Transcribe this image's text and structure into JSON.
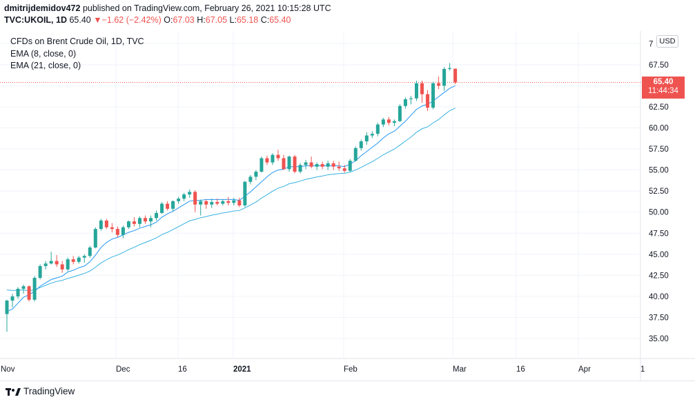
{
  "header": {
    "author": "dmitrijdemidov472",
    "published": "published on TradingView.com, February 26, 2021 10:15:28 UTC",
    "symbol": "TVC:UKOIL, 1D",
    "last": "65.40",
    "change_arrow": "▼",
    "change": "−1.62 (−2.42%)",
    "o_label": "O:",
    "o_value": "67.03",
    "h_label": "H:",
    "h_value": "67.05",
    "l_label": "L:",
    "l_value": "65.18",
    "c_label": "C:",
    "c_value": "65.40"
  },
  "legend": {
    "title": "CFDs on Brent Crude Oil, 1D, TVC",
    "ema8": "EMA (8, close, 0)",
    "ema21": "EMA (21, close, 0)"
  },
  "currency": "USD",
  "price_tag": {
    "price": "65.40",
    "countdown": "11:44:34"
  },
  "footer": {
    "brand": "TradingView"
  },
  "colors": {
    "up": "#26a69a",
    "down": "#ef5350",
    "ema8": "#2196f3",
    "ema21": "#33b1e0",
    "grid": "#f0f3fa",
    "axis_text": "#131722"
  },
  "chart_data": {
    "type": "candlestick",
    "symbol": "TVC:UKOIL",
    "interval": "1D",
    "ylim": [
      32.5,
      71.0
    ],
    "yticks": [
      "35.00",
      "37.50",
      "40.00",
      "42.50",
      "45.00",
      "47.50",
      "50.00",
      "52.50",
      "55.00",
      "57.50",
      "60.00",
      "62.50",
      "65.00",
      "67.50",
      "7"
    ],
    "xticks": [
      "Nov",
      "Dec",
      "16",
      "2021",
      "Feb",
      "Mar",
      "16",
      "Apr",
      "1"
    ],
    "last_price": 65.4,
    "candles": [
      {
        "o": 37.9,
        "h": 39.6,
        "l": 35.8,
        "c": 39.5
      },
      {
        "o": 39.5,
        "h": 40.3,
        "l": 38.7,
        "c": 40.0
      },
      {
        "o": 40.0,
        "h": 41.1,
        "l": 39.7,
        "c": 40.9
      },
      {
        "o": 40.9,
        "h": 41.4,
        "l": 40.3,
        "c": 41.2
      },
      {
        "o": 41.2,
        "h": 41.3,
        "l": 39.4,
        "c": 39.6
      },
      {
        "o": 39.6,
        "h": 42.4,
        "l": 39.4,
        "c": 42.2
      },
      {
        "o": 42.2,
        "h": 43.8,
        "l": 42.0,
        "c": 43.6
      },
      {
        "o": 43.6,
        "h": 44.2,
        "l": 43.2,
        "c": 43.9
      },
      {
        "o": 43.9,
        "h": 45.3,
        "l": 43.8,
        "c": 44.2
      },
      {
        "o": 44.2,
        "h": 44.9,
        "l": 43.5,
        "c": 43.8
      },
      {
        "o": 43.8,
        "h": 44.2,
        "l": 42.8,
        "c": 43.2
      },
      {
        "o": 43.2,
        "h": 44.6,
        "l": 43.0,
        "c": 44.4
      },
      {
        "o": 44.4,
        "h": 44.8,
        "l": 43.8,
        "c": 44.1
      },
      {
        "o": 44.1,
        "h": 44.8,
        "l": 43.9,
        "c": 44.6
      },
      {
        "o": 44.6,
        "h": 45.0,
        "l": 44.0,
        "c": 44.8
      },
      {
        "o": 44.8,
        "h": 46.0,
        "l": 44.6,
        "c": 45.8
      },
      {
        "o": 45.8,
        "h": 48.2,
        "l": 45.7,
        "c": 48.0
      },
      {
        "o": 48.0,
        "h": 49.2,
        "l": 47.8,
        "c": 49.0
      },
      {
        "o": 49.0,
        "h": 49.2,
        "l": 48.0,
        "c": 48.2
      },
      {
        "o": 48.2,
        "h": 48.7,
        "l": 47.6,
        "c": 48.0
      },
      {
        "o": 48.0,
        "h": 48.3,
        "l": 47.0,
        "c": 47.3
      },
      {
        "o": 47.3,
        "h": 48.4,
        "l": 46.9,
        "c": 48.2
      },
      {
        "o": 48.2,
        "h": 49.0,
        "l": 48.0,
        "c": 48.9
      },
      {
        "o": 48.9,
        "h": 49.4,
        "l": 48.3,
        "c": 48.6
      },
      {
        "o": 48.6,
        "h": 49.5,
        "l": 48.2,
        "c": 49.3
      },
      {
        "o": 49.3,
        "h": 49.6,
        "l": 48.6,
        "c": 48.9
      },
      {
        "o": 48.9,
        "h": 49.6,
        "l": 48.2,
        "c": 49.3
      },
      {
        "o": 49.3,
        "h": 50.2,
        "l": 49.0,
        "c": 49.9
      },
      {
        "o": 49.9,
        "h": 51.2,
        "l": 49.8,
        "c": 51.0
      },
      {
        "o": 51.0,
        "h": 51.3,
        "l": 50.2,
        "c": 50.4
      },
      {
        "o": 50.4,
        "h": 51.4,
        "l": 50.1,
        "c": 51.3
      },
      {
        "o": 51.3,
        "h": 51.8,
        "l": 51.0,
        "c": 51.6
      },
      {
        "o": 51.6,
        "h": 52.3,
        "l": 51.3,
        "c": 52.1
      },
      {
        "o": 52.1,
        "h": 52.7,
        "l": 51.7,
        "c": 52.4
      },
      {
        "o": 52.4,
        "h": 52.6,
        "l": 50.0,
        "c": 50.9
      },
      {
        "o": 50.9,
        "h": 51.5,
        "l": 49.6,
        "c": 51.3
      },
      {
        "o": 51.3,
        "h": 51.5,
        "l": 50.4,
        "c": 50.9
      },
      {
        "o": 50.9,
        "h": 51.6,
        "l": 50.5,
        "c": 51.2
      },
      {
        "o": 51.2,
        "h": 51.6,
        "l": 50.8,
        "c": 51.0
      },
      {
        "o": 51.0,
        "h": 51.5,
        "l": 50.8,
        "c": 51.3
      },
      {
        "o": 51.3,
        "h": 51.8,
        "l": 50.8,
        "c": 51.1
      },
      {
        "o": 51.1,
        "h": 51.7,
        "l": 50.8,
        "c": 51.4
      },
      {
        "o": 51.4,
        "h": 51.7,
        "l": 50.6,
        "c": 50.8
      },
      {
        "o": 50.8,
        "h": 53.7,
        "l": 50.6,
        "c": 53.6
      },
      {
        "o": 53.6,
        "h": 54.4,
        "l": 53.3,
        "c": 54.2
      },
      {
        "o": 54.2,
        "h": 55.0,
        "l": 53.8,
        "c": 54.8
      },
      {
        "o": 54.8,
        "h": 56.6,
        "l": 54.7,
        "c": 56.4
      },
      {
        "o": 56.4,
        "h": 56.7,
        "l": 55.6,
        "c": 55.9
      },
      {
        "o": 55.9,
        "h": 57.0,
        "l": 55.6,
        "c": 56.8
      },
      {
        "o": 56.8,
        "h": 57.4,
        "l": 56.1,
        "c": 56.4
      },
      {
        "o": 56.4,
        "h": 56.8,
        "l": 55.0,
        "c": 55.1
      },
      {
        "o": 55.1,
        "h": 56.7,
        "l": 54.8,
        "c": 56.6
      },
      {
        "o": 56.6,
        "h": 56.8,
        "l": 54.6,
        "c": 54.8
      },
      {
        "o": 54.8,
        "h": 55.8,
        "l": 54.6,
        "c": 55.6
      },
      {
        "o": 55.6,
        "h": 56.2,
        "l": 55.1,
        "c": 55.9
      },
      {
        "o": 55.9,
        "h": 56.6,
        "l": 55.2,
        "c": 55.4
      },
      {
        "o": 55.4,
        "h": 55.9,
        "l": 55.0,
        "c": 55.7
      },
      {
        "o": 55.7,
        "h": 56.0,
        "l": 55.1,
        "c": 55.4
      },
      {
        "o": 55.4,
        "h": 56.1,
        "l": 55.0,
        "c": 55.8
      },
      {
        "o": 55.8,
        "h": 56.1,
        "l": 55.0,
        "c": 55.4
      },
      {
        "o": 55.4,
        "h": 56.0,
        "l": 54.9,
        "c": 55.2
      },
      {
        "o": 55.2,
        "h": 55.6,
        "l": 54.7,
        "c": 54.9
      },
      {
        "o": 54.9,
        "h": 56.3,
        "l": 54.8,
        "c": 56.1
      },
      {
        "o": 56.1,
        "h": 57.8,
        "l": 56.0,
        "c": 57.6
      },
      {
        "o": 57.6,
        "h": 58.6,
        "l": 57.3,
        "c": 58.4
      },
      {
        "o": 58.4,
        "h": 59.5,
        "l": 58.0,
        "c": 59.1
      },
      {
        "o": 59.1,
        "h": 59.6,
        "l": 58.8,
        "c": 59.3
      },
      {
        "o": 59.3,
        "h": 60.6,
        "l": 59.0,
        "c": 60.4
      },
      {
        "o": 60.4,
        "h": 61.2,
        "l": 60.1,
        "c": 61.0
      },
      {
        "o": 61.0,
        "h": 61.3,
        "l": 60.3,
        "c": 60.6
      },
      {
        "o": 60.6,
        "h": 61.0,
        "l": 60.2,
        "c": 60.8
      },
      {
        "o": 60.8,
        "h": 62.8,
        "l": 60.7,
        "c": 62.6
      },
      {
        "o": 62.6,
        "h": 63.6,
        "l": 62.3,
        "c": 63.4
      },
      {
        "o": 63.4,
        "h": 63.8,
        "l": 62.8,
        "c": 63.5
      },
      {
        "o": 63.5,
        "h": 65.6,
        "l": 63.2,
        "c": 65.3
      },
      {
        "o": 65.3,
        "h": 65.6,
        "l": 63.0,
        "c": 64.0
      },
      {
        "o": 64.0,
        "h": 64.5,
        "l": 62.0,
        "c": 62.4
      },
      {
        "o": 62.4,
        "h": 65.5,
        "l": 62.2,
        "c": 65.3
      },
      {
        "o": 65.3,
        "h": 66.1,
        "l": 64.6,
        "c": 65.0
      },
      {
        "o": 65.0,
        "h": 67.2,
        "l": 64.4,
        "c": 67.0
      },
      {
        "o": 67.0,
        "h": 67.7,
        "l": 66.8,
        "c": 67.1
      },
      {
        "o": 67.03,
        "h": 67.05,
        "l": 65.18,
        "c": 65.4
      }
    ],
    "ema8": [
      38.2,
      38.5,
      39.2,
      39.9,
      40.2,
      40.6,
      41.2,
      41.6,
      42.0,
      42.2,
      42.4,
      42.9,
      43.1,
      43.4,
      43.6,
      44.1,
      44.9,
      45.8,
      46.4,
      46.8,
      47.0,
      47.3,
      47.6,
      47.8,
      48.1,
      48.3,
      48.5,
      48.8,
      49.4,
      49.8,
      50.1,
      50.5,
      50.9,
      51.3,
      51.4,
      51.4,
      51.5,
      51.5,
      51.5,
      51.5,
      51.5,
      51.5,
      51.4,
      51.9,
      52.4,
      53.0,
      53.6,
      54.2,
      54.7,
      55.0,
      55.1,
      55.4,
      55.4,
      55.4,
      55.5,
      55.5,
      55.5,
      55.5,
      55.5,
      55.5,
      55.5,
      55.4,
      55.7,
      56.1,
      56.7,
      57.2,
      57.7,
      58.2,
      58.8,
      59.3,
      59.6,
      60.2,
      60.8,
      61.5,
      62.2,
      62.6,
      62.8,
      63.2,
      63.7,
      64.2,
      64.7,
      65.0
    ]
  }
}
